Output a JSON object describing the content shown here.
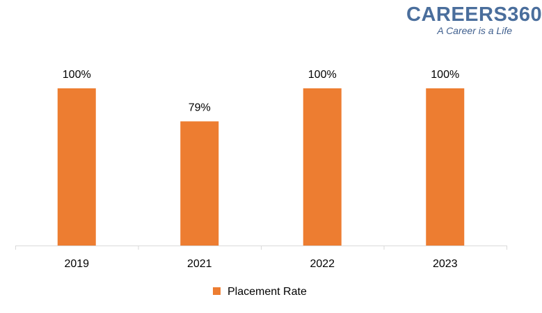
{
  "brand": {
    "logo_text": "CAREERS360",
    "tagline": "A Career is a Life"
  },
  "chart_data": {
    "type": "bar",
    "categories": [
      "2019",
      "2021",
      "2022",
      "2023"
    ],
    "series": [
      {
        "name": "Placement Rate",
        "values": [
          100,
          79,
          100,
          100
        ],
        "color": "#ed7d31"
      }
    ],
    "data_labels": [
      "100%",
      "79%",
      "100%",
      "100%"
    ],
    "title": "",
    "xlabel": "",
    "ylabel": "",
    "ylim": [
      0,
      100
    ],
    "grid": false,
    "legend_position": "bottom",
    "axis_color": "#d9d9d9",
    "text_color": "#000000"
  }
}
